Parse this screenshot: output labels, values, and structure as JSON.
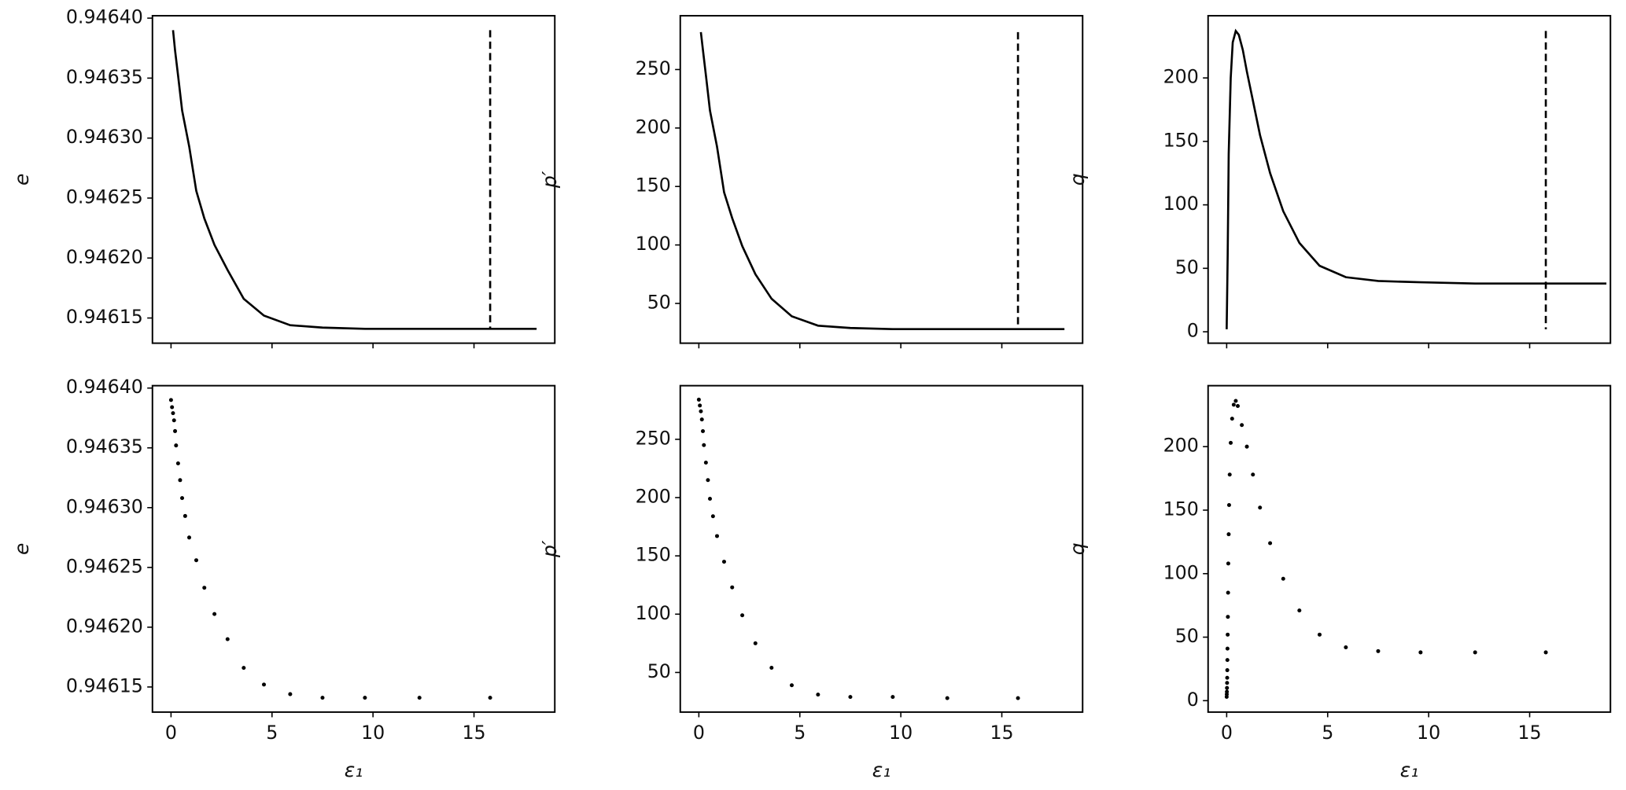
{
  "chart_data": [
    {
      "type": "line",
      "ylabel": "e",
      "xtick_labels": false,
      "color": "#000000",
      "vline": 15.8,
      "vline_style": "dashed",
      "x": [
        0.1,
        0.2,
        0.35,
        0.55,
        0.9,
        1.25,
        1.65,
        2.15,
        2.8,
        3.6,
        4.6,
        5.9,
        7.5,
        9.6,
        12.3,
        15.8,
        18.1
      ],
      "values": [
        0.94639,
        0.946373,
        0.946352,
        0.946323,
        0.946293,
        0.946256,
        0.946233,
        0.946211,
        0.94619,
        0.946166,
        0.946152,
        0.946144,
        0.946142,
        0.946141,
        0.946141,
        0.946141,
        0.946141
      ],
      "xlim": [
        -0.92,
        19.0
      ],
      "ylim": [
        0.946129,
        0.946402
      ],
      "xticks": [
        0,
        5,
        10,
        15
      ],
      "yticks": [
        0.94615,
        {
          "value": 0.9462,
          "label": "0.94620"
        },
        0.94625,
        {
          "value": 0.9463,
          "label": "0.94630"
        },
        0.94635,
        {
          "value": 0.9464,
          "label": "0.94640"
        }
      ]
    },
    {
      "type": "line",
      "ylabel": "p′",
      "xtick_labels": false,
      "color": "#000000",
      "vline": 15.8,
      "vline_style": "dashed",
      "x": [
        0.1,
        0.2,
        0.35,
        0.55,
        0.9,
        1.25,
        1.65,
        2.15,
        2.8,
        3.6,
        4.6,
        5.9,
        7.5,
        9.6,
        12.3,
        15.8,
        18.1
      ],
      "values": [
        282,
        267,
        245,
        215,
        184,
        145,
        123,
        99,
        75,
        54,
        39,
        31,
        29,
        28,
        28,
        28,
        28
      ],
      "xlim": [
        -0.92,
        19.0
      ],
      "ylim": [
        16,
        296
      ],
      "xticks": [
        0,
        5,
        10,
        15
      ],
      "yticks": [
        50,
        100,
        150,
        200,
        250
      ]
    },
    {
      "type": "line",
      "ylabel": "q",
      "xtick_labels": false,
      "color": "#000000",
      "vline": 15.8,
      "vline_style": "dashed",
      "x": [
        0,
        0.05,
        0.1,
        0.2,
        0.3,
        0.45,
        0.6,
        0.8,
        1.0,
        1.3,
        1.65,
        2.15,
        2.8,
        3.6,
        4.6,
        5.9,
        7.5,
        9.6,
        12.3,
        15.8,
        18.8
      ],
      "values": [
        2,
        60,
        140,
        200,
        228,
        237,
        234,
        222,
        205,
        182,
        155,
        125,
        95,
        70,
        52,
        43,
        40,
        39,
        38,
        38,
        38
      ],
      "xlim": [
        -0.92,
        19.0
      ],
      "ylim": [
        -9,
        249
      ],
      "xticks": [
        0,
        5,
        10,
        15
      ],
      "yticks": [
        0,
        50,
        100,
        150,
        200
      ]
    },
    {
      "type": "scatter",
      "ylabel": "e",
      "xlabel": "ε₁",
      "xtick_labels": true,
      "color": "#000000",
      "x": [
        0,
        0.05,
        0.1,
        0.15,
        0.2,
        0.25,
        0.35,
        0.45,
        0.55,
        0.7,
        0.9,
        1.25,
        1.65,
        2.15,
        2.8,
        3.6,
        4.6,
        5.9,
        7.5,
        9.6,
        12.3,
        15.8
      ],
      "values": [
        0.94639,
        0.946384,
        0.946379,
        0.946373,
        0.946364,
        0.946352,
        0.946337,
        0.946323,
        0.946308,
        0.946293,
        0.946275,
        0.946256,
        0.946233,
        0.946211,
        0.94619,
        0.946166,
        0.946152,
        0.946144,
        0.946141,
        0.946141,
        0.946141,
        0.946141
      ],
      "xlim": [
        -0.92,
        19.0
      ],
      "ylim": [
        0.946129,
        0.946402
      ],
      "xticks": [
        0,
        5,
        10,
        15
      ],
      "yticks": [
        0.94615,
        {
          "value": 0.9462,
          "label": "0.94620"
        },
        0.94625,
        {
          "value": 0.9463,
          "label": "0.94630"
        },
        0.94635,
        {
          "value": 0.9464,
          "label": "0.94640"
        }
      ]
    },
    {
      "type": "scatter",
      "ylabel": "p′",
      "xlabel": "ε₁",
      "xtick_labels": true,
      "color": "#000000",
      "x": [
        0,
        0.05,
        0.1,
        0.15,
        0.2,
        0.25,
        0.35,
        0.45,
        0.55,
        0.7,
        0.9,
        1.25,
        1.65,
        2.15,
        2.8,
        3.6,
        4.6,
        5.9,
        7.5,
        9.6,
        12.3,
        15.8
      ],
      "values": [
        284,
        279,
        274,
        267,
        257,
        245,
        230,
        215,
        199,
        184,
        167,
        145,
        123,
        99,
        75,
        54,
        39,
        31,
        29,
        29,
        28,
        28
      ],
      "xlim": [
        -0.92,
        19.0
      ],
      "ylim": [
        16,
        296
      ],
      "xticks": [
        0,
        5,
        10,
        15
      ],
      "yticks": [
        50,
        100,
        150,
        200,
        250
      ]
    },
    {
      "type": "scatter",
      "ylabel": "q",
      "xlabel": "ε₁",
      "xtick_labels": true,
      "color": "#000000",
      "x": [
        0,
        0.005,
        0.01,
        0.015,
        0.02,
        0.025,
        0.03,
        0.035,
        0.04,
        0.05,
        0.06,
        0.07,
        0.08,
        0.1,
        0.12,
        0.15,
        0.2,
        0.27,
        0.35,
        0.45,
        0.55,
        0.75,
        1.0,
        1.3,
        1.65,
        2.15,
        2.8,
        3.6,
        4.6,
        5.9,
        7.5,
        9.6,
        12.3,
        15.8
      ],
      "values": [
        3,
        5,
        7,
        10,
        14,
        18,
        24,
        32,
        41,
        52,
        66,
        85,
        108,
        131,
        154,
        178,
        203,
        222,
        233,
        236,
        232,
        217,
        200,
        178,
        152,
        124,
        96,
        71,
        52,
        42,
        39,
        38,
        38,
        38
      ],
      "xlim": [
        -0.92,
        19.0
      ],
      "ylim": [
        -9,
        248
      ],
      "xticks": [
        0,
        5,
        10,
        15
      ],
      "yticks": [
        0,
        50,
        100,
        150,
        200
      ]
    }
  ]
}
